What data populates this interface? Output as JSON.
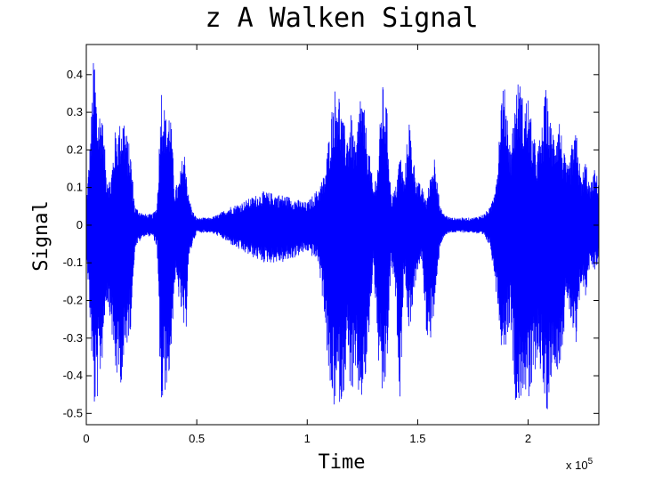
{
  "chart_data": {
    "type": "line",
    "title": "z A Walken Signal",
    "xlabel": "Time",
    "ylabel": "Signal",
    "x_exponent_label": "x 10",
    "x_exponent_power": "5",
    "xlim": [
      0,
      232000
    ],
    "ylim": [
      -0.53,
      0.48
    ],
    "x_ticks": [
      {
        "value": 0,
        "label": "0"
      },
      {
        "value": 50000,
        "label": "0.5"
      },
      {
        "value": 100000,
        "label": "1"
      },
      {
        "value": 150000,
        "label": "1.5"
      },
      {
        "value": 200000,
        "label": "2"
      }
    ],
    "y_ticks": [
      {
        "value": 0.4,
        "label": "0.4"
      },
      {
        "value": 0.3,
        "label": "0.3"
      },
      {
        "value": 0.2,
        "label": "0.2"
      },
      {
        "value": 0.1,
        "label": "0.1"
      },
      {
        "value": 0,
        "label": "0"
      },
      {
        "value": -0.1,
        "label": "-0.1"
      },
      {
        "value": -0.2,
        "label": "-0.2"
      },
      {
        "value": -0.3,
        "label": "-0.3"
      },
      {
        "value": -0.4,
        "label": "-0.4"
      },
      {
        "value": -0.5,
        "label": "-0.5"
      }
    ],
    "grid": false,
    "series": [
      {
        "color": "#0000ff",
        "envelope": {
          "x": [
            0,
            2000,
            3500,
            5000,
            7000,
            9000,
            11000,
            13000,
            15000,
            17000,
            18500,
            20000,
            22000,
            26000,
            30000,
            32000,
            34000,
            36000,
            38000,
            40000,
            42000,
            44000,
            45000,
            46000,
            48000,
            50000,
            52000,
            56000,
            60000,
            65000,
            70000,
            80000,
            90000,
            100000,
            105000,
            108000,
            110000,
            112000,
            114000,
            116000,
            118000,
            120000,
            122000,
            124000,
            126000,
            128000,
            130000,
            132000,
            134000,
            136000,
            138000,
            140000,
            142000,
            144000,
            146000,
            148000,
            150000,
            152000,
            154000,
            156000,
            158000,
            160000,
            162000,
            165000,
            170000,
            175000,
            180000,
            183000,
            186000,
            188000,
            190000,
            192000,
            194000,
            196000,
            198000,
            200000,
            202000,
            204000,
            206000,
            208000,
            210000,
            212000,
            214000,
            216000,
            218000,
            220000,
            222000,
            224000,
            226000,
            228000,
            230000,
            232000
          ],
          "max": [
            0.06,
            0.25,
            0.48,
            0.3,
            0.32,
            0.15,
            0.12,
            0.25,
            0.27,
            0.3,
            0.24,
            0.2,
            0.05,
            0.03,
            0.03,
            0.05,
            0.38,
            0.29,
            0.32,
            0.1,
            0.12,
            0.2,
            0.19,
            0.09,
            0.04,
            0.02,
            0.02,
            0.02,
            0.03,
            0.05,
            0.06,
            0.09,
            0.08,
            0.06,
            0.1,
            0.14,
            0.25,
            0.36,
            0.38,
            0.28,
            0.25,
            0.3,
            0.2,
            0.37,
            0.3,
            0.2,
            0.1,
            0.17,
            0.38,
            0.32,
            0.08,
            0.1,
            0.2,
            0.12,
            0.3,
            0.18,
            0.12,
            0.1,
            0.07,
            0.14,
            0.2,
            0.05,
            0.03,
            0.02,
            0.02,
            0.02,
            0.03,
            0.05,
            0.15,
            0.37,
            0.36,
            0.2,
            0.34,
            0.4,
            0.32,
            0.35,
            0.25,
            0.2,
            0.25,
            0.37,
            0.28,
            0.25,
            0.3,
            0.2,
            0.15,
            0.22,
            0.25,
            0.12,
            0.18,
            0.1,
            0.15,
            0.12
          ],
          "min": [
            -0.06,
            -0.3,
            -0.5,
            -0.47,
            -0.38,
            -0.2,
            -0.25,
            -0.4,
            -0.43,
            -0.4,
            -0.32,
            -0.28,
            -0.06,
            -0.03,
            -0.03,
            -0.06,
            -0.53,
            -0.43,
            -0.4,
            -0.15,
            -0.2,
            -0.28,
            -0.32,
            -0.12,
            -0.05,
            -0.02,
            -0.02,
            -0.02,
            -0.03,
            -0.05,
            -0.07,
            -0.1,
            -0.1,
            -0.07,
            -0.1,
            -0.25,
            -0.45,
            -0.49,
            -0.47,
            -0.48,
            -0.35,
            -0.46,
            -0.43,
            -0.48,
            -0.45,
            -0.3,
            -0.1,
            -0.35,
            -0.49,
            -0.4,
            -0.1,
            -0.2,
            -0.47,
            -0.12,
            -0.3,
            -0.2,
            -0.12,
            -0.1,
            -0.3,
            -0.3,
            -0.22,
            -0.06,
            -0.03,
            -0.02,
            -0.02,
            -0.02,
            -0.03,
            -0.06,
            -0.2,
            -0.33,
            -0.32,
            -0.25,
            -0.46,
            -0.49,
            -0.43,
            -0.5,
            -0.45,
            -0.35,
            -0.4,
            -0.53,
            -0.42,
            -0.37,
            -0.39,
            -0.3,
            -0.2,
            -0.3,
            -0.35,
            -0.15,
            -0.2,
            -0.1,
            -0.12,
            -0.1
          ]
        }
      }
    ]
  }
}
